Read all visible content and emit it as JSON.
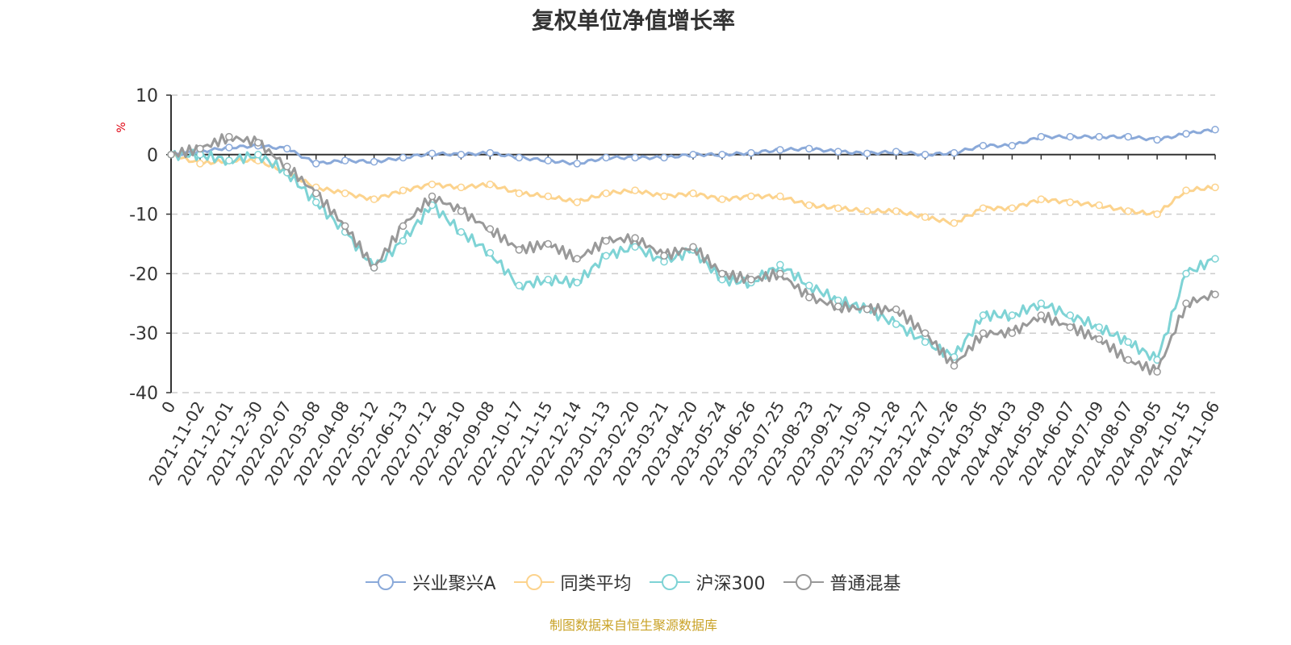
{
  "chart_data": {
    "type": "line",
    "title": "复权单位净值增长率",
    "ylabel": "%",
    "xlabel": "",
    "ylim": [
      -40,
      10
    ],
    "yticks": [
      10,
      0,
      -10,
      -20,
      -30,
      -40
    ],
    "grid": true,
    "legend_position": "bottom-center",
    "categories": [
      "0",
      "2021-11-02",
      "2021-12-01",
      "2021-12-30",
      "2022-02-07",
      "2022-03-08",
      "2022-04-08",
      "2022-05-12",
      "2022-06-13",
      "2022-07-12",
      "2022-08-10",
      "2022-09-08",
      "2022-10-17",
      "2022-11-15",
      "2022-12-14",
      "2023-01-13",
      "2023-02-20",
      "2023-03-21",
      "2023-04-20",
      "2023-05-24",
      "2023-06-26",
      "2023-07-25",
      "2023-08-23",
      "2023-09-21",
      "2023-10-30",
      "2023-11-28",
      "2023-12-27",
      "2024-01-26",
      "2024-03-05",
      "2024-04-03",
      "2024-05-09",
      "2024-06-07",
      "2024-07-09",
      "2024-08-07",
      "2024-09-05",
      "2024-10-15",
      "2024-11-06"
    ],
    "series": [
      {
        "name": "兴业聚兴A",
        "color": "#8aa9d9",
        "values": [
          0,
          0.5,
          1.2,
          1.5,
          1.0,
          -1.5,
          -1.0,
          -1.2,
          -0.5,
          0.2,
          0,
          0.3,
          -0.5,
          -1.0,
          -1.5,
          -0.5,
          -0.5,
          -0.5,
          0,
          0,
          0.3,
          0.8,
          1.0,
          0.5,
          0.2,
          0.5,
          0,
          0.3,
          1.5,
          1.5,
          3.0,
          3.0,
          3.0,
          3.0,
          2.5,
          3.5,
          4.2
        ]
      },
      {
        "name": "同类平均",
        "color": "#fcd38d",
        "values": [
          0,
          -1.5,
          -1.0,
          -1.0,
          -3.0,
          -5.5,
          -6.5,
          -7.5,
          -6.0,
          -5.0,
          -5.5,
          -5.0,
          -6.5,
          -7.0,
          -8.0,
          -6.5,
          -6.0,
          -7.0,
          -6.5,
          -7.5,
          -7.0,
          -7.0,
          -8.5,
          -9.0,
          -9.5,
          -9.5,
          -10.5,
          -11.5,
          -9.0,
          -9.0,
          -7.5,
          -8.0,
          -8.5,
          -9.5,
          -10.0,
          -6.0,
          -5.5
        ]
      },
      {
        "name": "沪深300",
        "color": "#7ed3d5",
        "values": [
          0,
          0,
          -1.0,
          0,
          -3.0,
          -8.0,
          -13.0,
          -19.0,
          -14.5,
          -8.5,
          -13.0,
          -16.5,
          -22.0,
          -21.0,
          -21.5,
          -17.0,
          -15.5,
          -18.0,
          -16.0,
          -21.0,
          -21.5,
          -18.5,
          -22.0,
          -24.5,
          -26.0,
          -28.5,
          -31.5,
          -34.0,
          -27.0,
          -27.0,
          -25.0,
          -27.0,
          -29.0,
          -31.5,
          -34.5,
          -20.0,
          -17.5
        ]
      },
      {
        "name": "普通混基",
        "color": "#999999",
        "values": [
          0,
          1.0,
          3.0,
          2.0,
          -2.0,
          -6.5,
          -12.0,
          -19.0,
          -12.0,
          -7.0,
          -9.5,
          -12.5,
          -16.0,
          -15.0,
          -17.5,
          -14.5,
          -14.0,
          -17.0,
          -15.5,
          -20.0,
          -21.0,
          -20.0,
          -24.0,
          -25.5,
          -26.0,
          -26.0,
          -30.0,
          -35.5,
          -30.0,
          -30.0,
          -27.0,
          -29.0,
          -31.0,
          -34.5,
          -36.5,
          -25.0,
          -23.5
        ]
      }
    ],
    "marker": "hollow-circle"
  },
  "source_note": "制图数据来自恒生聚源数据库"
}
